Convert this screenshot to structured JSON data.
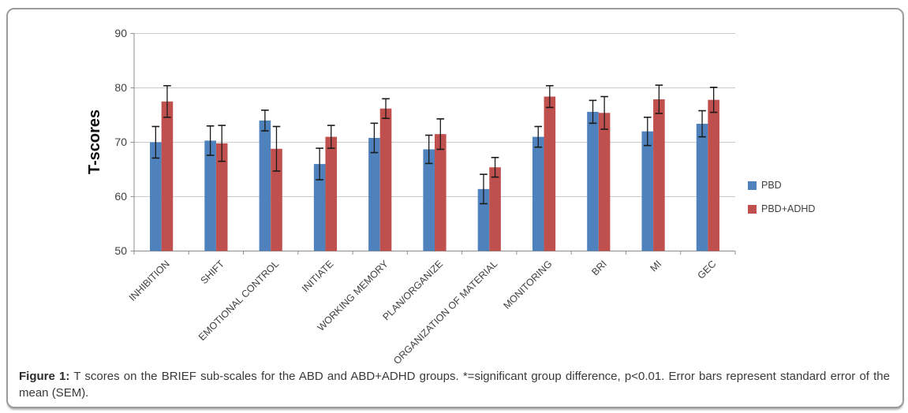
{
  "figure": {
    "caption_label": "Figure 1:",
    "caption_text": "T scores on the BRIEF sub-scales for the ABD and ABD+ADHD groups. *=significant group difference, p<0.01. Error bars represent standard error of the mean (SEM)."
  },
  "chart_data": {
    "type": "bar",
    "title": "",
    "xlabel": "",
    "ylabel": "T-scores",
    "ylim": [
      50,
      90
    ],
    "yticks": [
      50,
      60,
      70,
      80,
      90
    ],
    "grid": "horizontal",
    "legend_position": "right",
    "error_bars": "SEM",
    "categories": [
      "INHIBITION",
      "SHIFT",
      "EMOTIONAL CONTROL",
      "INITIATE",
      "WORKING MEMORY",
      "PLAN/ORGANIZE",
      "ORGANIZATION OF MATERIAL",
      "MONITORING",
      "BRI",
      "MI",
      "GEC"
    ],
    "series": [
      {
        "name": "PBD",
        "color": "#4F81BD",
        "values": [
          70.0,
          70.3,
          74.0,
          66.0,
          70.8,
          68.7,
          61.4,
          71.0,
          75.6,
          72.0,
          73.4
        ],
        "sem": [
          2.9,
          2.7,
          1.9,
          2.9,
          2.7,
          2.6,
          2.7,
          1.9,
          2.1,
          2.6,
          2.4
        ]
      },
      {
        "name": "PBD+ADHD",
        "color": "#C0504D",
        "values": [
          77.5,
          69.8,
          68.8,
          71.0,
          76.2,
          71.5,
          65.4,
          78.4,
          75.4,
          77.9,
          77.8
        ],
        "sem": [
          2.9,
          3.3,
          4.1,
          2.1,
          1.8,
          2.8,
          1.8,
          2.0,
          3.0,
          2.6,
          2.3
        ]
      }
    ],
    "colors": {
      "gridline": "#C9C9C9",
      "axis": "#8E8E8E",
      "error": "#1A1A1A"
    }
  }
}
